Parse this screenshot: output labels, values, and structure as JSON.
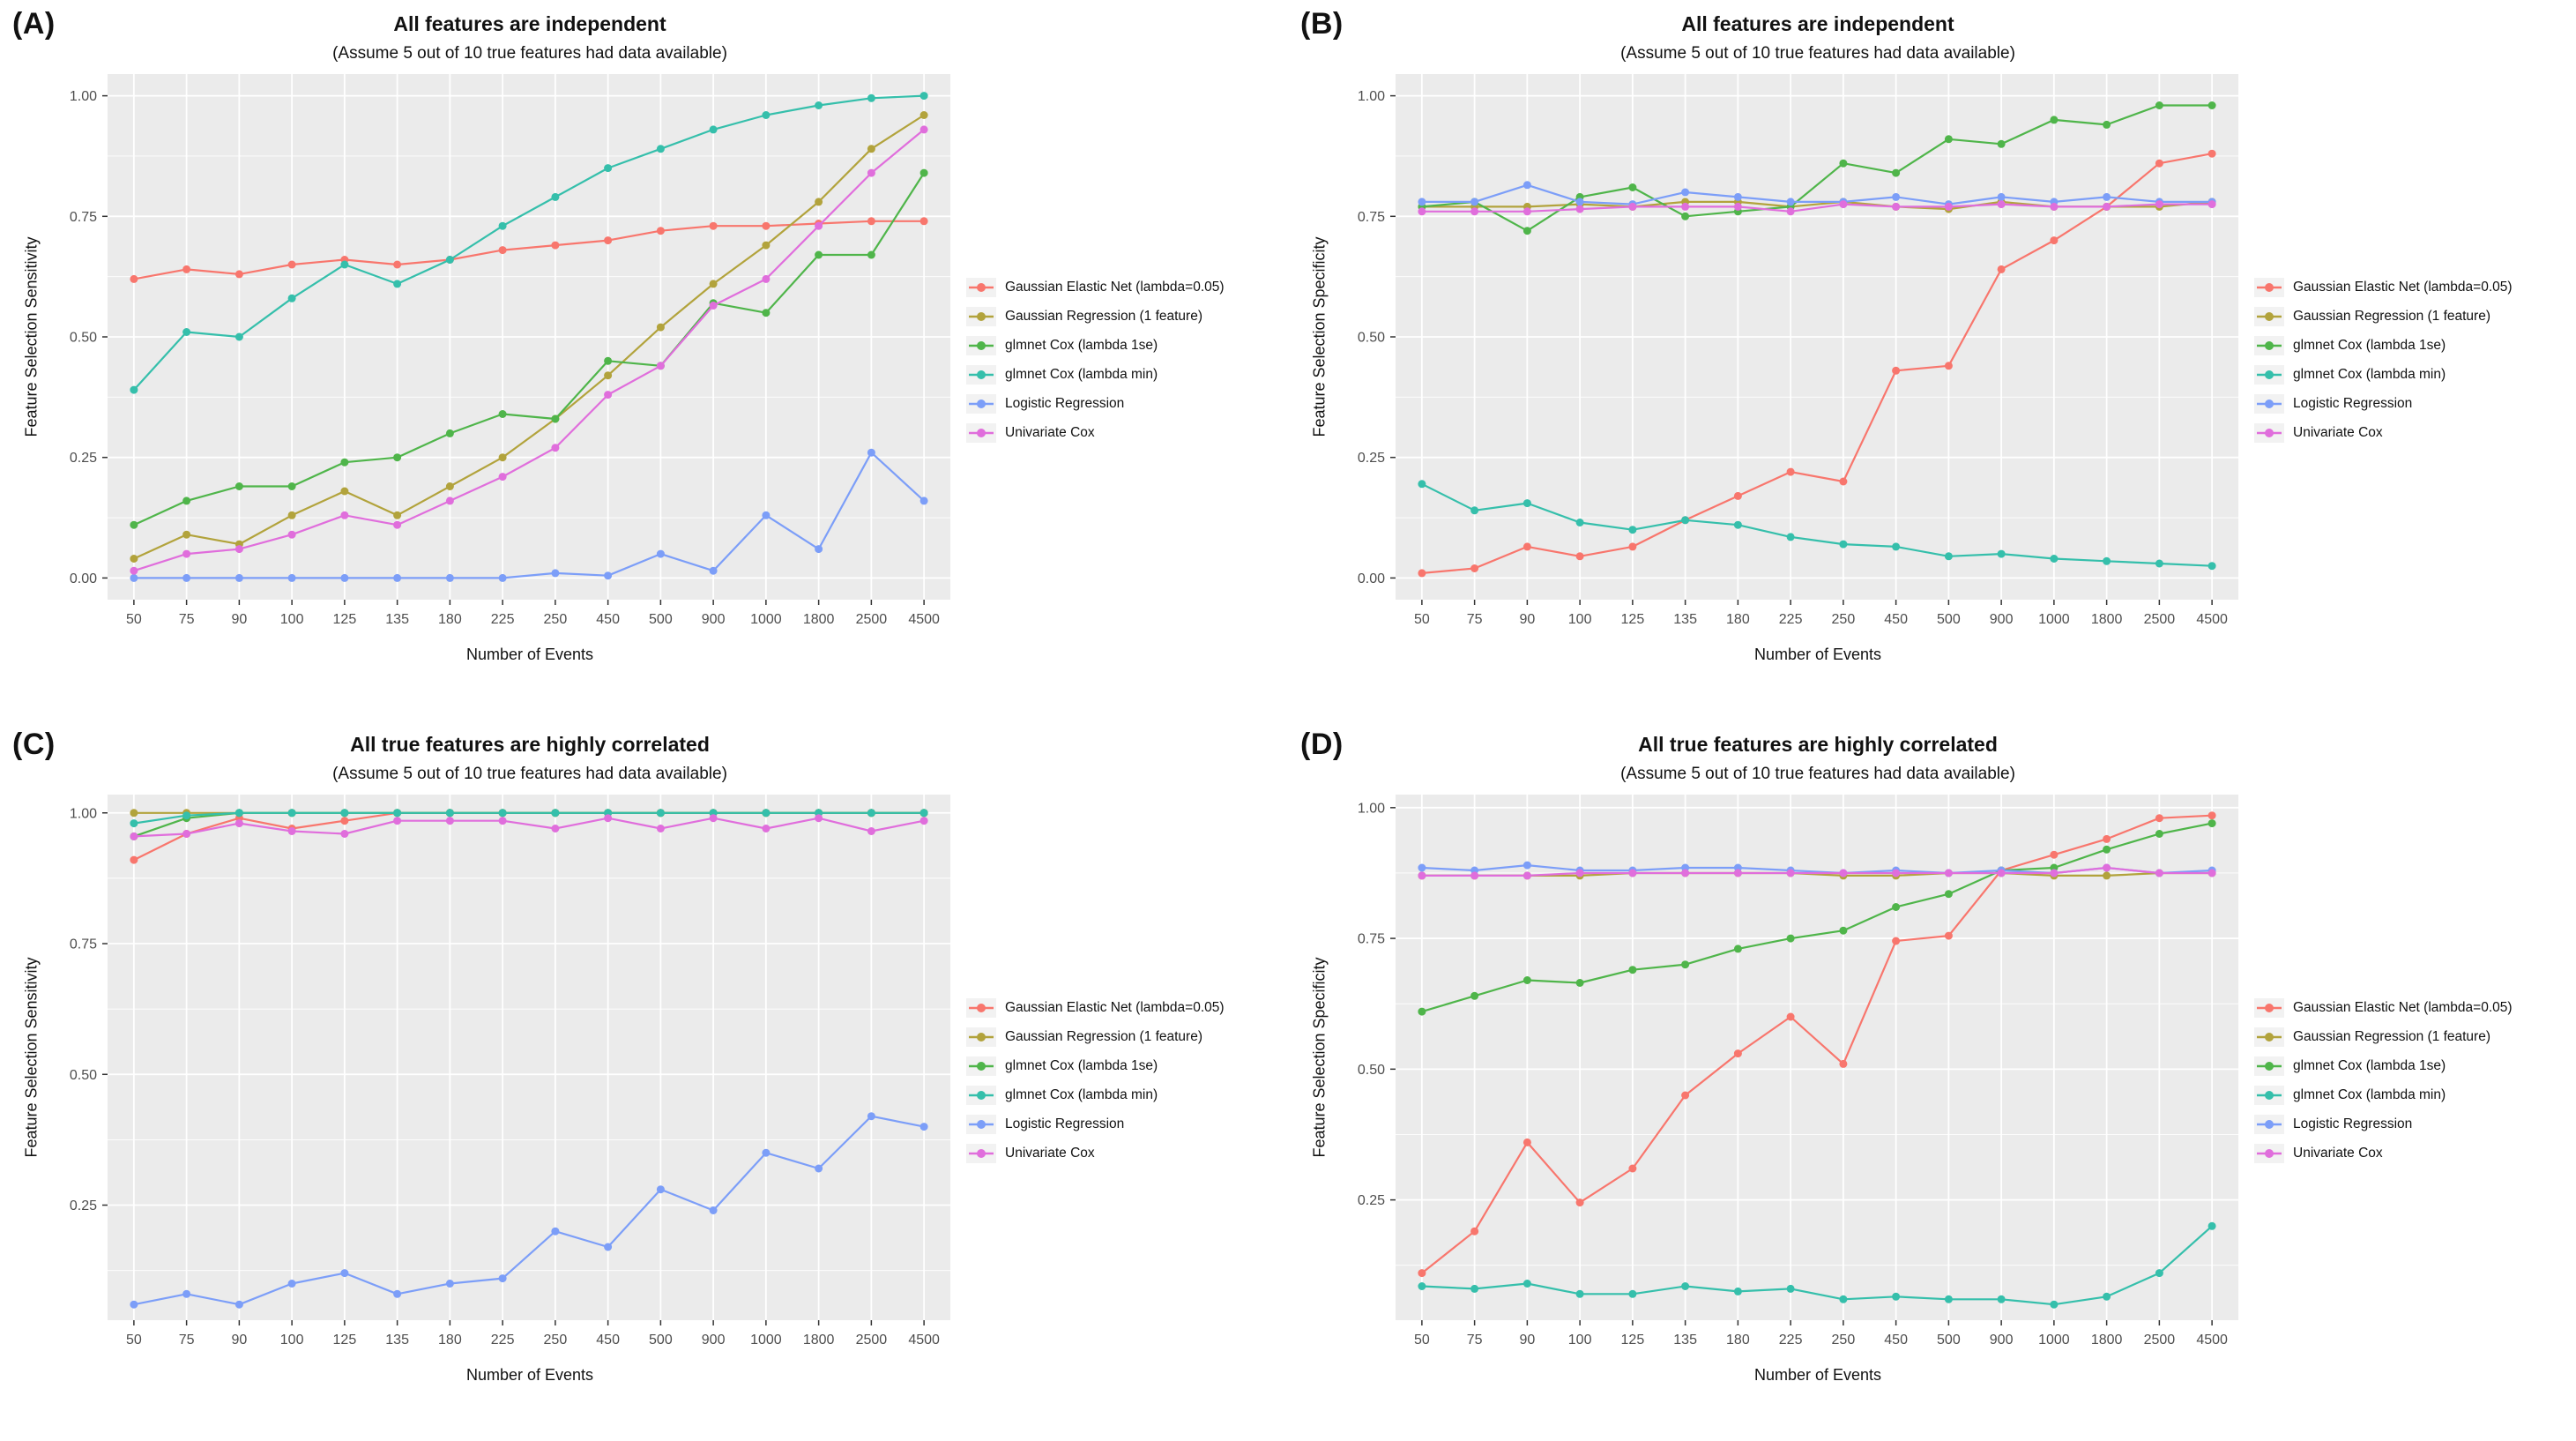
{
  "figure": {
    "background": "#FFFFFF",
    "panel_background": "#EBEBEB",
    "grid_color": "#FFFFFF",
    "tick_label_color": "#4D4D4D",
    "tick_mark_color": "#333333"
  },
  "legend": {
    "entries": [
      {
        "label": "Gaussian Elastic Net (lambda=0.05)",
        "color": "#F8766D"
      },
      {
        "label": "Gaussian Regression (1 feature)",
        "color": "#B2A33C"
      },
      {
        "label": "glmnet Cox (lambda 1se)",
        "color": "#4FB54A"
      },
      {
        "label": "glmnet Cox (lambda min)",
        "color": "#35BFAB"
      },
      {
        "label": "Logistic Regression",
        "color": "#7C9EF8"
      },
      {
        "label": "Univariate Cox",
        "color": "#E06EDC"
      }
    ]
  },
  "chart_data": [
    {
      "type": "line",
      "panel": "(A)",
      "title": "All features are independent",
      "subtitle": "(Assume 5 out of 10 true features had data available)",
      "xlabel": "Number of Events",
      "ylabel": "Feature Selection Sensitivity",
      "categories": [
        "50",
        "75",
        "90",
        "100",
        "125",
        "135",
        "180",
        "225",
        "250",
        "450",
        "500",
        "900",
        "1000",
        "1800",
        "2500",
        "4500"
      ],
      "yticks": [
        0.0,
        0.25,
        0.5,
        0.75,
        1.0
      ],
      "ylim": [
        -0.045,
        1.045
      ],
      "grid": true,
      "legend_position": "right",
      "series": [
        {
          "name": "Gaussian Elastic Net (lambda=0.05)",
          "values": [
            0.62,
            0.64,
            0.63,
            0.65,
            0.66,
            0.65,
            0.66,
            0.68,
            0.69,
            0.7,
            0.72,
            0.73,
            0.73,
            0.735,
            0.74,
            0.74
          ]
        },
        {
          "name": "Gaussian Regression (1 feature)",
          "values": [
            0.04,
            0.09,
            0.07,
            0.13,
            0.18,
            0.13,
            0.19,
            0.25,
            0.33,
            0.42,
            0.52,
            0.61,
            0.69,
            0.78,
            0.89,
            0.96
          ]
        },
        {
          "name": "glmnet Cox (lambda 1se)",
          "values": [
            0.11,
            0.16,
            0.19,
            0.19,
            0.24,
            0.25,
            0.3,
            0.34,
            0.33,
            0.45,
            0.44,
            0.57,
            0.55,
            0.67,
            0.67,
            0.84
          ]
        },
        {
          "name": "glmnet Cox (lambda min)",
          "values": [
            0.39,
            0.51,
            0.5,
            0.58,
            0.65,
            0.61,
            0.66,
            0.73,
            0.79,
            0.85,
            0.89,
            0.93,
            0.96,
            0.98,
            0.995,
            1.0
          ]
        },
        {
          "name": "Logistic Regression",
          "values": [
            0.0,
            0.0,
            0.0,
            0.0,
            0.0,
            0.0,
            0.0,
            0.0,
            0.01,
            0.005,
            0.05,
            0.015,
            0.13,
            0.06,
            0.26,
            0.16
          ]
        },
        {
          "name": "Univariate Cox",
          "values": [
            0.015,
            0.05,
            0.06,
            0.09,
            0.13,
            0.11,
            0.16,
            0.21,
            0.27,
            0.38,
            0.44,
            0.565,
            0.62,
            0.73,
            0.84,
            0.93
          ]
        }
      ]
    },
    {
      "type": "line",
      "panel": "(B)",
      "title": "All features are independent",
      "subtitle": "(Assume 5 out of 10 true features had data available)",
      "xlabel": "Number of Events",
      "ylabel": "Feature Selection Specificity",
      "categories": [
        "50",
        "75",
        "90",
        "100",
        "125",
        "135",
        "180",
        "225",
        "250",
        "450",
        "500",
        "900",
        "1000",
        "1800",
        "2500",
        "4500"
      ],
      "yticks": [
        0.0,
        0.25,
        0.5,
        0.75,
        1.0
      ],
      "ylim": [
        -0.045,
        1.045
      ],
      "grid": true,
      "legend_position": "right",
      "series": [
        {
          "name": "Gaussian Elastic Net (lambda=0.05)",
          "values": [
            0.01,
            0.02,
            0.065,
            0.045,
            0.065,
            0.12,
            0.17,
            0.22,
            0.2,
            0.43,
            0.44,
            0.64,
            0.7,
            0.77,
            0.86,
            0.88
          ]
        },
        {
          "name": "Gaussian Regression (1 feature)",
          "values": [
            0.77,
            0.77,
            0.77,
            0.775,
            0.77,
            0.78,
            0.78,
            0.77,
            0.78,
            0.77,
            0.765,
            0.78,
            0.77,
            0.77,
            0.77,
            0.78
          ]
        },
        {
          "name": "glmnet Cox (lambda 1se)",
          "values": [
            0.77,
            0.78,
            0.72,
            0.79,
            0.81,
            0.75,
            0.76,
            0.77,
            0.86,
            0.84,
            0.91,
            0.9,
            0.95,
            0.94,
            0.98,
            0.98
          ]
        },
        {
          "name": "glmnet Cox (lambda min)",
          "values": [
            0.195,
            0.14,
            0.155,
            0.115,
            0.1,
            0.12,
            0.11,
            0.085,
            0.07,
            0.065,
            0.045,
            0.05,
            0.04,
            0.035,
            0.03,
            0.025
          ]
        },
        {
          "name": "Logistic Regression",
          "values": [
            0.78,
            0.78,
            0.815,
            0.78,
            0.775,
            0.8,
            0.79,
            0.78,
            0.78,
            0.79,
            0.775,
            0.79,
            0.78,
            0.79,
            0.78,
            0.78
          ]
        },
        {
          "name": "Univariate Cox",
          "values": [
            0.76,
            0.76,
            0.76,
            0.765,
            0.77,
            0.77,
            0.77,
            0.76,
            0.775,
            0.77,
            0.77,
            0.775,
            0.77,
            0.77,
            0.775,
            0.775
          ]
        }
      ]
    },
    {
      "type": "line",
      "panel": "(C)",
      "title": "All true features are highly correlated",
      "subtitle": "(Assume 5 out of 10 true features had data available)",
      "xlabel": "Number of Events",
      "ylabel": "Feature Selection Sensitivity",
      "categories": [
        "50",
        "75",
        "90",
        "100",
        "125",
        "135",
        "180",
        "225",
        "250",
        "450",
        "500",
        "900",
        "1000",
        "1800",
        "2500",
        "4500"
      ],
      "yticks": [
        0.25,
        0.5,
        0.75,
        1.0
      ],
      "ylim": [
        0.03,
        1.035
      ],
      "grid": true,
      "legend_position": "right",
      "series": [
        {
          "name": "Gaussian Elastic Net (lambda=0.05)",
          "values": [
            0.91,
            0.96,
            0.99,
            0.97,
            0.985,
            1.0,
            1.0,
            1.0,
            1.0,
            1.0,
            1.0,
            1.0,
            1.0,
            1.0,
            1.0,
            1.0
          ]
        },
        {
          "name": "Gaussian Regression (1 feature)",
          "values": [
            1.0,
            1.0,
            1.0,
            1.0,
            1.0,
            1.0,
            1.0,
            1.0,
            1.0,
            1.0,
            1.0,
            1.0,
            1.0,
            1.0,
            1.0,
            1.0
          ]
        },
        {
          "name": "glmnet Cox (lambda 1se)",
          "values": [
            0.955,
            0.99,
            1.0,
            1.0,
            1.0,
            1.0,
            1.0,
            1.0,
            1.0,
            1.0,
            1.0,
            1.0,
            1.0,
            1.0,
            1.0,
            1.0
          ]
        },
        {
          "name": "glmnet Cox (lambda min)",
          "values": [
            0.98,
            0.995,
            1.0,
            1.0,
            1.0,
            1.0,
            1.0,
            1.0,
            1.0,
            1.0,
            1.0,
            1.0,
            1.0,
            1.0,
            1.0,
            1.0
          ]
        },
        {
          "name": "Logistic Regression",
          "values": [
            0.06,
            0.08,
            0.06,
            0.1,
            0.12,
            0.08,
            0.1,
            0.11,
            0.2,
            0.17,
            0.28,
            0.24,
            0.35,
            0.32,
            0.42,
            0.4
          ]
        },
        {
          "name": "Univariate Cox",
          "values": [
            0.955,
            0.96,
            0.98,
            0.965,
            0.96,
            0.985,
            0.985,
            0.985,
            0.97,
            0.99,
            0.97,
            0.99,
            0.97,
            0.99,
            0.965,
            0.985
          ]
        }
      ]
    },
    {
      "type": "line",
      "panel": "(D)",
      "title": "All true features are highly correlated",
      "subtitle": "(Assume 5 out of 10 true features had data available)",
      "xlabel": "Number of Events",
      "ylabel": "Feature Selection Specificity",
      "categories": [
        "50",
        "75",
        "90",
        "100",
        "125",
        "135",
        "180",
        "225",
        "250",
        "450",
        "500",
        "900",
        "1000",
        "1800",
        "2500",
        "4500"
      ],
      "yticks": [
        0.25,
        0.5,
        0.75,
        1.0
      ],
      "ylim": [
        0.02,
        1.025
      ],
      "grid": true,
      "legend_position": "right",
      "series": [
        {
          "name": "Gaussian Elastic Net (lambda=0.05)",
          "values": [
            0.11,
            0.19,
            0.36,
            0.245,
            0.31,
            0.45,
            0.53,
            0.6,
            0.51,
            0.745,
            0.755,
            0.88,
            0.91,
            0.94,
            0.98,
            0.985
          ]
        },
        {
          "name": "Gaussian Regression (1 feature)",
          "values": [
            0.87,
            0.87,
            0.87,
            0.87,
            0.875,
            0.875,
            0.875,
            0.875,
            0.87,
            0.87,
            0.875,
            0.875,
            0.87,
            0.87,
            0.875,
            0.875
          ]
        },
        {
          "name": "glmnet Cox (lambda 1se)",
          "values": [
            0.61,
            0.64,
            0.67,
            0.665,
            0.69,
            0.7,
            0.73,
            0.75,
            0.765,
            0.81,
            0.835,
            0.88,
            0.885,
            0.92,
            0.95,
            0.97
          ]
        },
        {
          "name": "glmnet Cox (lambda min)",
          "values": [
            0.085,
            0.08,
            0.09,
            0.07,
            0.07,
            0.085,
            0.075,
            0.08,
            0.06,
            0.065,
            0.06,
            0.06,
            0.05,
            0.065,
            0.11,
            0.2
          ]
        },
        {
          "name": "Logistic Regression",
          "values": [
            0.885,
            0.88,
            0.89,
            0.88,
            0.88,
            0.885,
            0.885,
            0.88,
            0.875,
            0.88,
            0.875,
            0.88,
            0.875,
            0.885,
            0.875,
            0.88
          ]
        },
        {
          "name": "Univariate Cox",
          "values": [
            0.87,
            0.87,
            0.87,
            0.875,
            0.875,
            0.875,
            0.875,
            0.875,
            0.875,
            0.875,
            0.875,
            0.875,
            0.875,
            0.885,
            0.875,
            0.875
          ]
        }
      ]
    }
  ]
}
